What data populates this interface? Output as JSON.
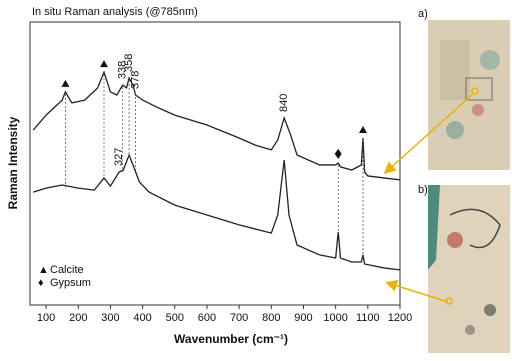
{
  "chart_data": {
    "type": "line",
    "title": "In situ Raman analysis (@785nm)",
    "xlabel": "Wavenumber (cm⁻¹)",
    "ylabel": "Raman Intensity",
    "xlim": [
      50,
      1200
    ],
    "xticks": [
      100,
      200,
      300,
      400,
      500,
      600,
      700,
      800,
      900,
      1000,
      1100,
      1200
    ],
    "ylim": [
      0,
      100
    ],
    "series": [
      {
        "color": "#222222",
        "x": [
          60,
          100,
          150,
          160,
          180,
          220,
          260,
          280,
          300,
          320,
          338,
          350,
          358,
          370,
          378,
          400,
          450,
          500,
          600,
          700,
          750,
          800,
          820,
          840,
          860,
          880,
          950,
          1000,
          1008,
          1015,
          1050,
          1080,
          1085,
          1090,
          1100,
          1150,
          1200
        ],
        "values": [
          61.8,
          67.1,
          72.4,
          75.3,
          71.4,
          72.4,
          76.7,
          82.3,
          75.3,
          74.2,
          77.7,
          76.7,
          80.2,
          77.7,
          74.2,
          72.4,
          69.6,
          67.1,
          63.6,
          59.0,
          56.5,
          54.8,
          58.3,
          66.1,
          60.1,
          53.0,
          49.5,
          49.5,
          50.2,
          48.8,
          47.7,
          49.5,
          59.0,
          47.0,
          45.6,
          44.9,
          44.2
        ]
      },
      {
        "color": "#222222",
        "x": [
          60,
          100,
          150,
          200,
          250,
          280,
          300,
          327,
          340,
          358,
          370,
          390,
          420,
          500,
          600,
          700,
          800,
          820,
          840,
          855,
          880,
          950,
          1000,
          1008,
          1015,
          1050,
          1080,
          1085,
          1090,
          1150,
          1200
        ],
        "values": [
          39.9,
          41.3,
          42.4,
          41.3,
          40.6,
          44.9,
          42.0,
          47.0,
          47.7,
          53.0,
          49.5,
          43.5,
          39.9,
          35.3,
          31.8,
          28.3,
          25.4,
          31.8,
          51.2,
          31.8,
          21.2,
          17.7,
          16.6,
          25.8,
          16.6,
          15.2,
          15.2,
          17.7,
          14.5,
          13.1,
          12.4
        ]
      }
    ],
    "top_peak_labels": [
      338,
      358,
      378,
      840
    ],
    "bottom_peak_labels": [
      327
    ],
    "calcite_peaks": [
      160,
      280,
      1085
    ],
    "gypsum_peaks": [
      1008
    ],
    "legend": [
      {
        "symbol": "▲",
        "label": "Calcite"
      },
      {
        "symbol": "♦",
        "label": "Gypsum"
      }
    ],
    "panel_labels": [
      "a)",
      "b)"
    ]
  }
}
